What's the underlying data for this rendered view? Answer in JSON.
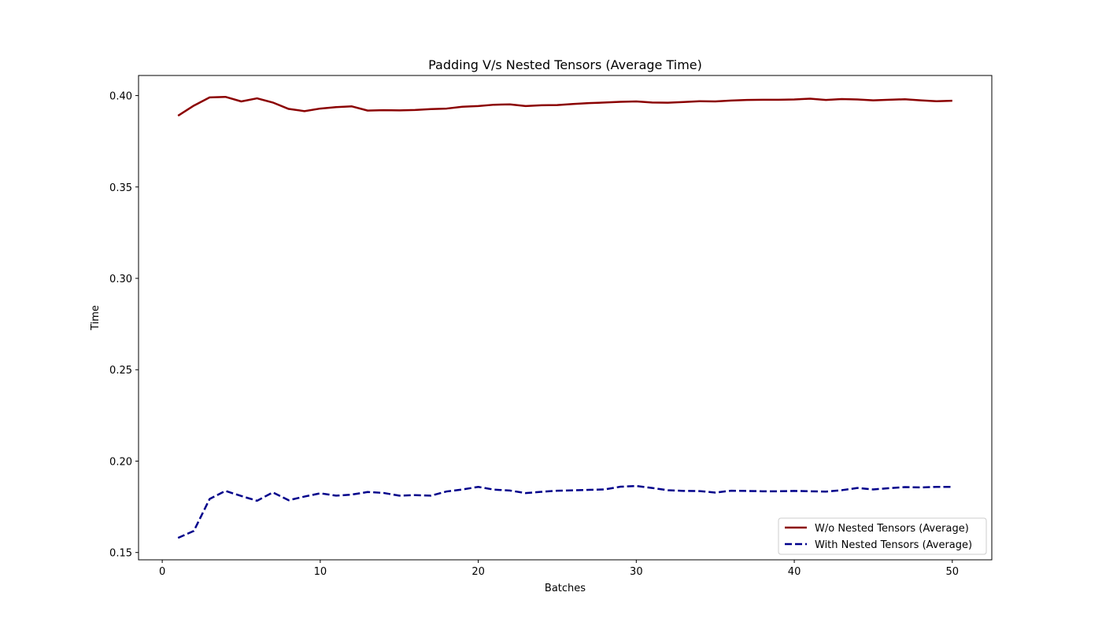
{
  "chart_data": {
    "type": "line",
    "title": "Padding V/s Nested Tensors (Average Time)",
    "xlabel": "Batches",
    "ylabel": "Time",
    "xlim": [
      -1.5,
      52.5
    ],
    "ylim": [
      0.146,
      0.411
    ],
    "xticks": [
      0,
      10,
      20,
      30,
      40,
      50
    ],
    "xtick_labels": [
      "0",
      "10",
      "20",
      "30",
      "40",
      "50"
    ],
    "yticks": [
      0.15,
      0.2,
      0.25,
      0.3,
      0.35,
      0.4
    ],
    "ytick_labels": [
      "0.15",
      "0.20",
      "0.25",
      "0.30",
      "0.35",
      "0.40"
    ],
    "grid": false,
    "legend_position": "lower-right",
    "x": [
      1,
      2,
      3,
      4,
      5,
      6,
      7,
      8,
      9,
      10,
      11,
      12,
      13,
      14,
      15,
      16,
      17,
      18,
      19,
      20,
      21,
      22,
      23,
      24,
      25,
      26,
      27,
      28,
      29,
      30,
      31,
      32,
      33,
      34,
      35,
      36,
      37,
      38,
      39,
      40,
      41,
      42,
      43,
      44,
      45,
      46,
      47,
      48,
      49,
      50
    ],
    "series": [
      {
        "name": "W/o Nested Tensors (Average)",
        "color": "#8b0000",
        "style": "solid",
        "values": [
          0.389,
          0.3945,
          0.399,
          0.3993,
          0.3968,
          0.3985,
          0.3962,
          0.3927,
          0.3915,
          0.3929,
          0.3937,
          0.3941,
          0.3918,
          0.392,
          0.3919,
          0.3921,
          0.3926,
          0.3929,
          0.3939,
          0.3943,
          0.395,
          0.3952,
          0.3943,
          0.3947,
          0.3948,
          0.3954,
          0.3959,
          0.3962,
          0.3966,
          0.3968,
          0.3962,
          0.3961,
          0.3965,
          0.3969,
          0.3968,
          0.3973,
          0.3976,
          0.3977,
          0.3977,
          0.3979,
          0.3983,
          0.3976,
          0.3981,
          0.3979,
          0.3974,
          0.3977,
          0.398,
          0.3974,
          0.3969,
          0.3972
        ]
      },
      {
        "name": "With Nested Tensors (Average)",
        "color": "#00008b",
        "style": "dashed",
        "values": [
          0.158,
          0.1618,
          0.1793,
          0.1837,
          0.1809,
          0.1783,
          0.1829,
          0.1786,
          0.1806,
          0.1824,
          0.1811,
          0.1817,
          0.1831,
          0.1826,
          0.1811,
          0.1814,
          0.1811,
          0.1834,
          0.1845,
          0.1859,
          0.1844,
          0.1839,
          0.1825,
          0.1832,
          0.1838,
          0.184,
          0.1843,
          0.1845,
          0.186,
          0.1864,
          0.1853,
          0.1841,
          0.1837,
          0.1836,
          0.1828,
          0.1838,
          0.1837,
          0.1835,
          0.1835,
          0.1837,
          0.1835,
          0.1833,
          0.1841,
          0.1853,
          0.1845,
          0.1852,
          0.1858,
          0.1856,
          0.1859,
          0.1859
        ]
      }
    ]
  }
}
